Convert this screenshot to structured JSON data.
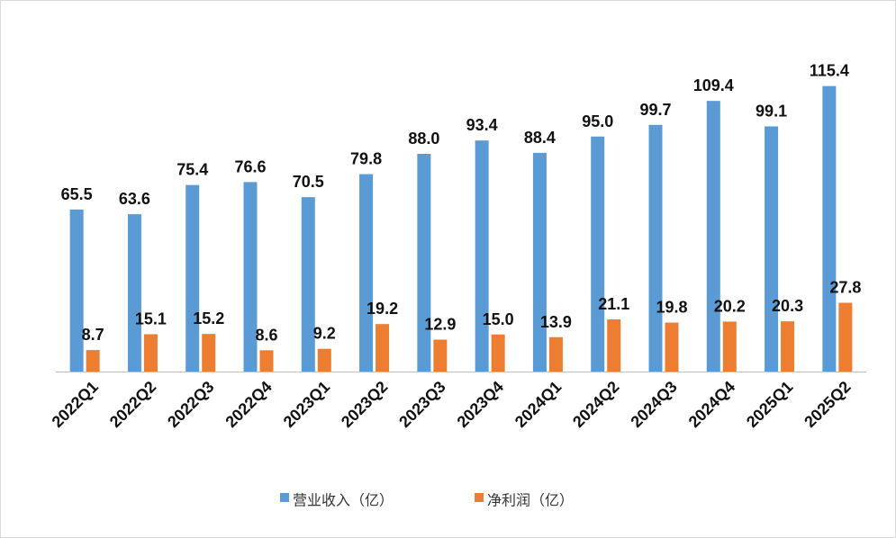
{
  "chart_data": {
    "type": "bar",
    "title": "",
    "xlabel": "",
    "ylabel": "",
    "ylim": [
      0,
      130
    ],
    "grid": false,
    "legend_position": "bottom",
    "categories": [
      "2022Q1",
      "2022Q2",
      "2022Q3",
      "2022Q4",
      "2023Q1",
      "2023Q2",
      "2023Q3",
      "2023Q4",
      "2024Q1",
      "2024Q2",
      "2024Q3",
      "2024Q4",
      "2025Q1",
      "2025Q2"
    ],
    "series": [
      {
        "name": "营业收入（亿）",
        "color": "#5b9bd5",
        "values": [
          65.5,
          63.6,
          75.4,
          76.6,
          70.5,
          79.8,
          88.0,
          93.4,
          88.4,
          95.0,
          99.7,
          109.4,
          99.1,
          115.4
        ],
        "labels": [
          "65.5",
          "63.6",
          "75.4",
          "76.6",
          "70.5",
          "79.8",
          "88.0",
          "93.4",
          "88.4",
          "95.0",
          "99.7",
          "109.4",
          "99.1",
          "115.4"
        ]
      },
      {
        "name": "净利润（亿）",
        "color": "#ed7d31",
        "values": [
          8.7,
          15.1,
          15.2,
          8.6,
          9.2,
          19.2,
          12.9,
          15.0,
          13.9,
          21.1,
          19.8,
          20.2,
          20.3,
          27.8
        ],
        "labels": [
          "8.7",
          "15.1",
          "15.2",
          "8.6",
          "9.2",
          "19.2",
          "12.9",
          "15.0",
          "13.9",
          "21.1",
          "19.8",
          "20.2",
          "20.3",
          "27.8"
        ]
      }
    ]
  }
}
